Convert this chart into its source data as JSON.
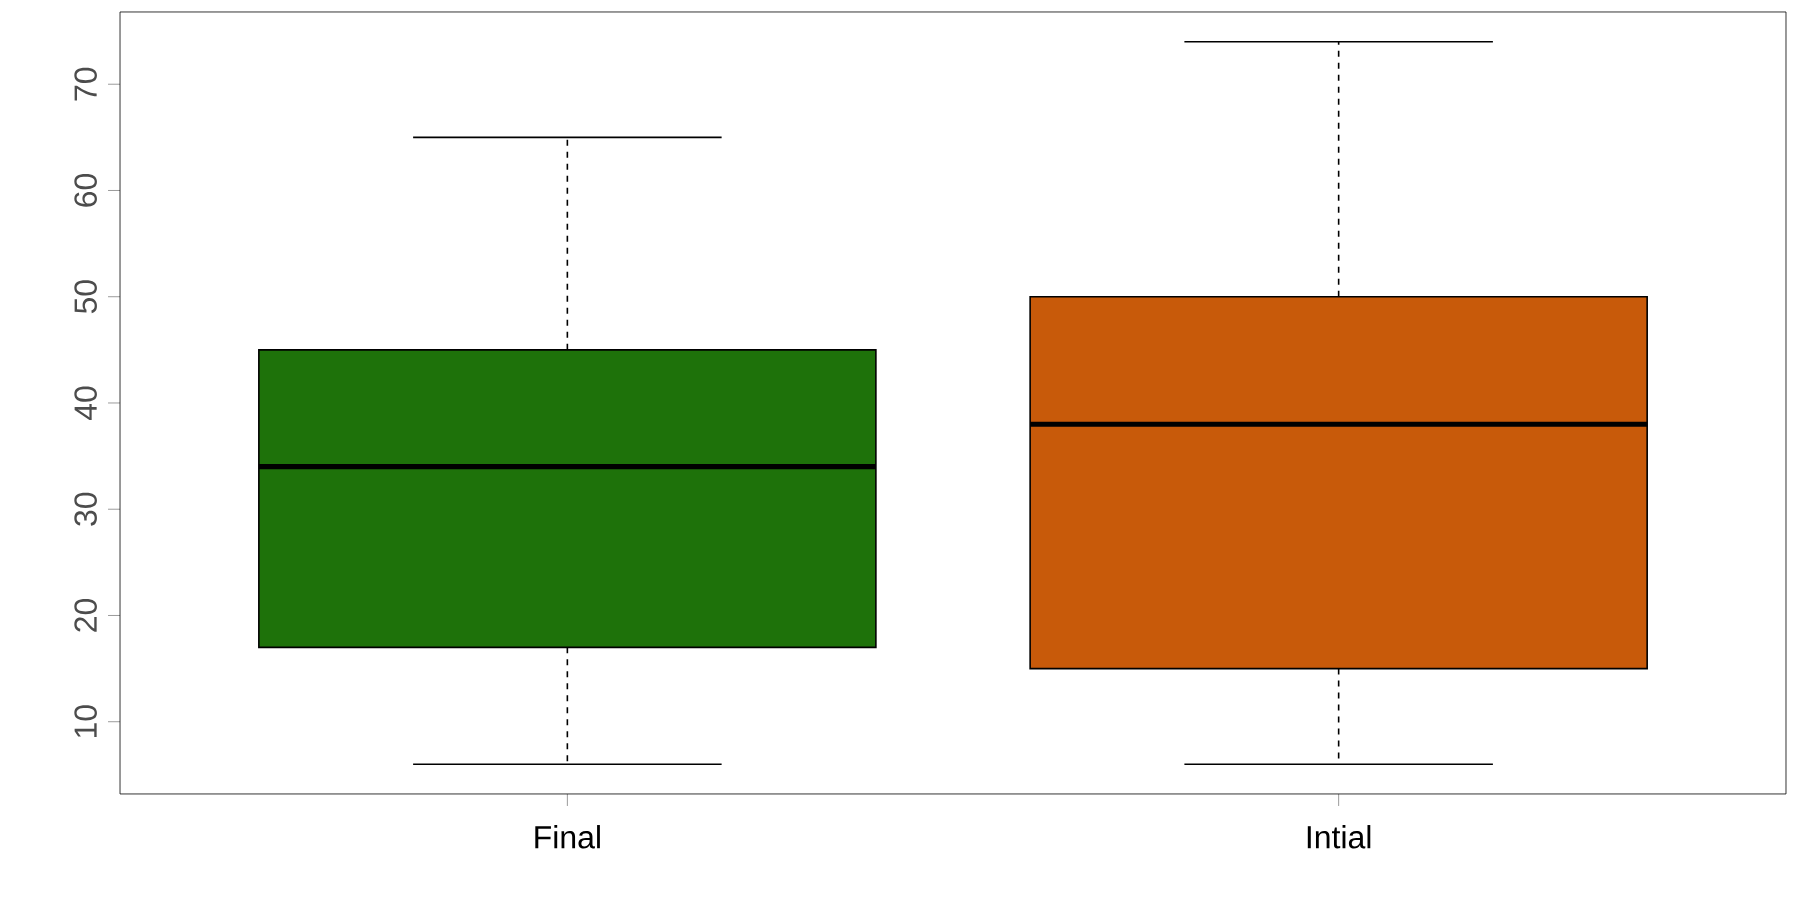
{
  "chart_data": {
    "type": "box",
    "categories": [
      "Final",
      "Intial"
    ],
    "colors": [
      "#1e720a",
      "#c85a0a"
    ],
    "boxes": [
      {
        "low": 6,
        "q1": 17,
        "median": 34,
        "q3": 45,
        "high": 65
      },
      {
        "low": 6,
        "q1": 15,
        "median": 38,
        "q3": 50,
        "high": 74
      }
    ],
    "ylim": [
      3.2,
      76.8
    ],
    "yticks": [
      10,
      20,
      30,
      40,
      50,
      60,
      70
    ],
    "grid": false
  }
}
